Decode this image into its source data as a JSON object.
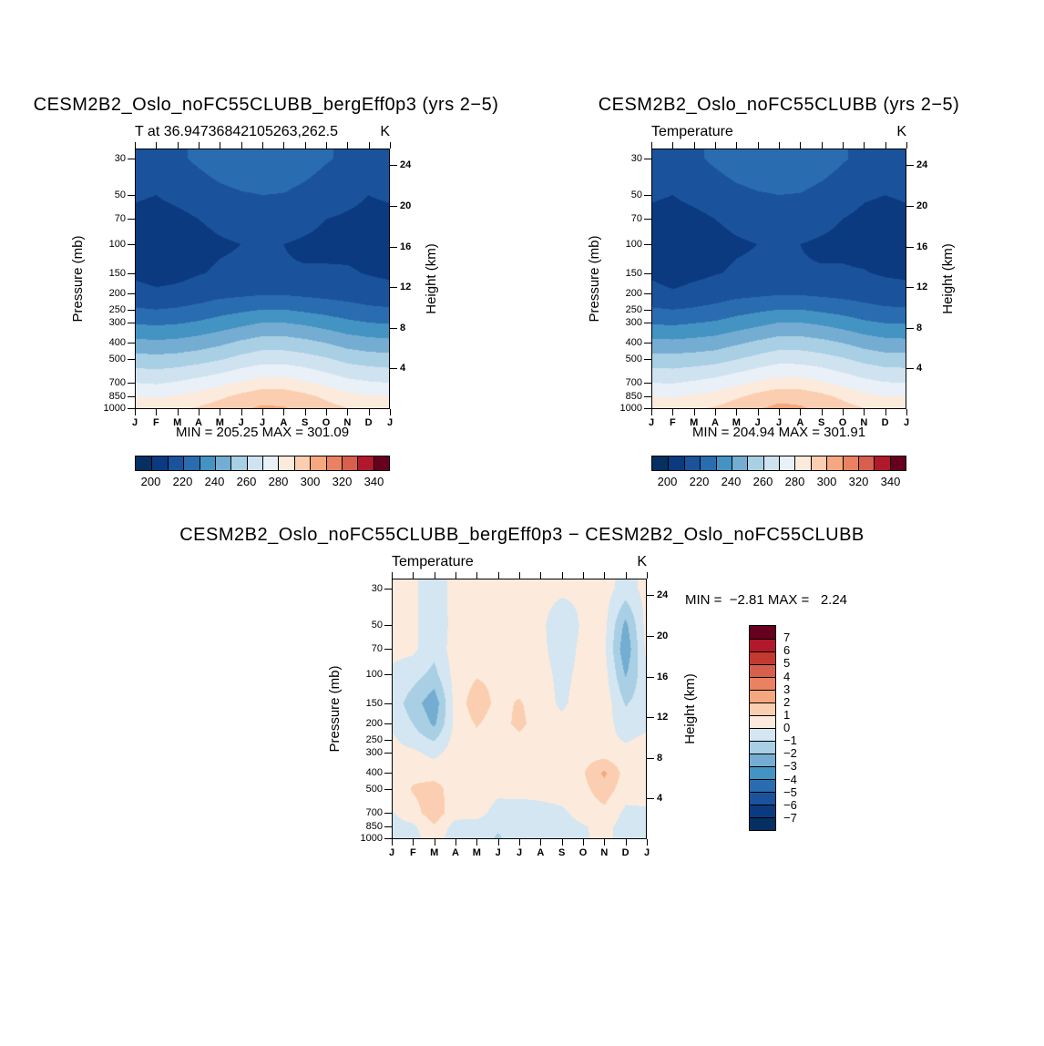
{
  "chart_data": [
    {
      "type": "heatmap",
      "title": "CESM2B2_Oslo_noFC55CLUBB_bergEff0p3 (yrs 2−5)",
      "subtitle": "T at 36.94736842105263,262.5",
      "unit": "K",
      "ylabel": "Pressure (mb)",
      "y2label": "Height (km)",
      "min_max_label": "MIN = 205.25 MAX = 301.09",
      "min": 205.25,
      "max": 301.09,
      "x_ticks": [
        "J",
        "F",
        "M",
        "A",
        "M",
        "J",
        "J",
        "A",
        "S",
        "O",
        "N",
        "D",
        "J"
      ],
      "pressure_ticks": [
        30,
        50,
        70,
        100,
        150,
        200,
        250,
        300,
        400,
        500,
        700,
        850,
        1000
      ],
      "height_ticks_km": [
        24,
        20,
        16,
        12,
        8,
        4
      ],
      "y_scale": "log-pressure",
      "y_range_mb": [
        26,
        1013
      ],
      "contour_levels": [
        200,
        210,
        220,
        230,
        240,
        250,
        260,
        270,
        280,
        290,
        300,
        310,
        320,
        330,
        340
      ],
      "palette": [
        "#053061",
        "#0b3a80",
        "#1a539c",
        "#2a6cb0",
        "#4393c3",
        "#74add1",
        "#a8cfe4",
        "#cfe2ef",
        "#e9f0f7",
        "#fcebdc",
        "#fbceb1",
        "#f5a87f",
        "#ea8160",
        "#d6604d",
        "#b2182b",
        "#67001f"
      ],
      "colorbar_labels": [
        "200",
        "220",
        "240",
        "260",
        "280",
        "300",
        "320",
        "340"
      ],
      "grid": {
        "pressures_mb": [
          30,
          50,
          70,
          100,
          150,
          200,
          250,
          300,
          400,
          500,
          700,
          850,
          1000
        ],
        "months": [
          "J",
          "F",
          "M",
          "A",
          "M",
          "J",
          "J",
          "A",
          "S",
          "O",
          "N",
          "D",
          "J"
        ],
        "values": [
          [
            217,
            216,
            218,
            222,
            226,
            228,
            229,
            228,
            225,
            221,
            218,
            216,
            217
          ],
          [
            211,
            210,
            212,
            214,
            217,
            219,
            220,
            219.5,
            217,
            214,
            212,
            210,
            211
          ],
          [
            208,
            207,
            208,
            210,
            212,
            213.5,
            214,
            213.5,
            212,
            210,
            209,
            208,
            208
          ],
          [
            206.5,
            205.3,
            206,
            207.5,
            209,
            210,
            210.5,
            210,
            209,
            208,
            207.5,
            207,
            206.5
          ],
          [
            208,
            205.8,
            207,
            209.5,
            211,
            211.5,
            211,
            210.5,
            210.5,
            211,
            211,
            209.5,
            208
          ],
          [
            214,
            212,
            213,
            215,
            217,
            218,
            219,
            219,
            218,
            217,
            216,
            214.5,
            214
          ],
          [
            221,
            220,
            221,
            223,
            226,
            228,
            230,
            230,
            228,
            226,
            224,
            222,
            221
          ],
          [
            229,
            228,
            229,
            231,
            234,
            237,
            240,
            240,
            238,
            235,
            232,
            230,
            229
          ],
          [
            243,
            242,
            243,
            245,
            248,
            252,
            255,
            255,
            253,
            250,
            246,
            244,
            243
          ],
          [
            254,
            253,
            254,
            256,
            259,
            263,
            266,
            266,
            264,
            261,
            257,
            255,
            254
          ],
          [
            270,
            269,
            271,
            274,
            277,
            281,
            284,
            284,
            281,
            277,
            273,
            271,
            270
          ],
          [
            280,
            279,
            281,
            284,
            288,
            293,
            297,
            297,
            293,
            288,
            283,
            281,
            280
          ],
          [
            287,
            286,
            288,
            291,
            295,
            299,
            301.1,
            300.5,
            298,
            294,
            290,
            287.5,
            287
          ]
        ]
      }
    },
    {
      "type": "heatmap",
      "title": "CESM2B2_Oslo_noFC55CLUBB (yrs 2−5)",
      "subtitle": "Temperature",
      "unit": "K",
      "ylabel": "Pressure (mb)",
      "y2label": "Height (km)",
      "min_max_label": "MIN = 204.94 MAX = 301.91",
      "min": 204.94,
      "max": 301.91,
      "x_ticks": [
        "J",
        "F",
        "M",
        "A",
        "M",
        "J",
        "J",
        "A",
        "S",
        "O",
        "N",
        "D",
        "J"
      ],
      "pressure_ticks": [
        30,
        50,
        70,
        100,
        150,
        200,
        250,
        300,
        400,
        500,
        700,
        850,
        1000
      ],
      "height_ticks_km": [
        24,
        20,
        16,
        12,
        8,
        4
      ],
      "y_scale": "log-pressure",
      "y_range_mb": [
        26,
        1013
      ],
      "contour_levels": [
        200,
        210,
        220,
        230,
        240,
        250,
        260,
        270,
        280,
        290,
        300,
        310,
        320,
        330,
        340
      ],
      "palette": [
        "#053061",
        "#0b3a80",
        "#1a539c",
        "#2a6cb0",
        "#4393c3",
        "#74add1",
        "#a8cfe4",
        "#cfe2ef",
        "#e9f0f7",
        "#fcebdc",
        "#fbceb1",
        "#f5a87f",
        "#ea8160",
        "#d6604d",
        "#b2182b",
        "#67001f"
      ],
      "colorbar_labels": [
        "200",
        "220",
        "240",
        "260",
        "280",
        "300",
        "320",
        "340"
      ],
      "grid": {
        "pressures_mb": [
          30,
          50,
          70,
          100,
          150,
          200,
          250,
          300,
          400,
          500,
          700,
          850,
          1000
        ],
        "months": [
          "J",
          "F",
          "M",
          "A",
          "M",
          "J",
          "J",
          "A",
          "S",
          "O",
          "N",
          "D",
          "J"
        ],
        "values": [
          [
            216,
            215,
            218,
            222,
            226,
            228,
            229,
            228,
            225,
            221,
            217,
            215,
            216
          ],
          [
            211,
            210,
            212,
            214,
            217,
            219,
            220,
            219.5,
            217,
            214,
            211,
            210,
            211
          ],
          [
            208,
            207,
            208,
            210,
            212,
            213.5,
            214,
            213.5,
            212,
            210,
            208,
            207,
            208
          ],
          [
            206.5,
            205,
            206,
            207.5,
            209,
            210,
            210.5,
            210,
            209,
            208,
            207,
            206.5,
            206.5
          ],
          [
            208,
            204.9,
            207.5,
            209.5,
            211,
            211.5,
            211,
            210.5,
            210.5,
            211,
            210.5,
            209,
            208
          ],
          [
            214,
            211.5,
            213.5,
            215,
            217,
            218,
            219,
            219,
            218,
            217,
            215.5,
            214,
            214
          ],
          [
            221,
            220,
            221,
            223,
            226,
            228,
            230,
            230,
            228,
            226,
            223.5,
            221.5,
            221
          ],
          [
            229,
            228,
            229.5,
            231,
            234,
            237,
            240,
            240,
            238,
            235,
            231.5,
            229.5,
            229
          ],
          [
            243,
            242.5,
            243.5,
            245,
            248.5,
            252,
            255,
            255,
            253,
            250,
            246,
            243.5,
            243
          ],
          [
            254,
            253.5,
            254.5,
            256,
            259.5,
            263,
            266.5,
            266,
            264,
            261,
            257,
            254.5,
            254
          ],
          [
            270,
            269.5,
            271.5,
            274,
            277.5,
            281.5,
            284.5,
            284,
            281,
            277,
            273,
            270.5,
            270
          ],
          [
            280,
            279.5,
            281.5,
            284,
            288.5,
            293.5,
            297.5,
            297,
            293,
            288,
            283,
            280.5,
            280
          ],
          [
            287,
            286.5,
            288.5,
            291,
            295.5,
            299.5,
            301.9,
            301,
            298,
            294,
            290,
            287,
            287
          ]
        ]
      }
    },
    {
      "type": "heatmap",
      "title": "CESM2B2_Oslo_noFC55CLUBB_bergEff0p3 − CESM2B2_Oslo_noFC55CLUBB",
      "subtitle": "Temperature",
      "unit": "K",
      "ylabel": "Pressure (mb)",
      "y2label": "Height (km)",
      "min_max_label": "MIN =  −2.81 MAX =   2.24",
      "min": -2.81,
      "max": 2.24,
      "x_ticks": [
        "J",
        "F",
        "M",
        "A",
        "M",
        "J",
        "J",
        "A",
        "S",
        "O",
        "N",
        "D",
        "J"
      ],
      "pressure_ticks": [
        30,
        50,
        70,
        100,
        150,
        200,
        250,
        300,
        400,
        500,
        700,
        850,
        1000
      ],
      "height_ticks_km": [
        24,
        20,
        16,
        12,
        8,
        4
      ],
      "y_scale": "log-pressure",
      "y_range_mb": [
        26,
        1013
      ],
      "contour_levels": [
        -7,
        -6,
        -5,
        -4,
        -3,
        -2,
        -1,
        0,
        1,
        2,
        3,
        4,
        5,
        6,
        7
      ],
      "palette": [
        "#053061",
        "#0b3a80",
        "#1a539c",
        "#2a6cb0",
        "#4393c3",
        "#74add1",
        "#a8cfe4",
        "#d4e6f2",
        "#fcebdc",
        "#fbceb1",
        "#f5a87f",
        "#ea8160",
        "#d6604d",
        "#c2392f",
        "#b2182b",
        "#67001f"
      ],
      "colorbar_labels": [
        "7",
        "6",
        "5",
        "4",
        "3",
        "2",
        "1",
        "0",
        "−1",
        "−2",
        "−3",
        "−4",
        "−5",
        "−6",
        "−7"
      ],
      "grid": {
        "pressures_mb": [
          30,
          50,
          70,
          100,
          150,
          200,
          250,
          300,
          400,
          500,
          700,
          850,
          1000
        ],
        "months": [
          "J",
          "F",
          "M",
          "A",
          "M",
          "J",
          "J",
          "A",
          "S",
          "O",
          "N",
          "D",
          "J"
        ],
        "values": [
          [
            0.3,
            0.2,
            -0.6,
            0.4,
            0.3,
            0.4,
            0.3,
            0.4,
            0.3,
            0.2,
            0.4,
            -0.4,
            0.3
          ],
          [
            0.4,
            0.3,
            -0.9,
            0.5,
            0.4,
            0.3,
            0.2,
            0.3,
            -0.9,
            0.2,
            0.3,
            -2.3,
            0.4
          ],
          [
            0.3,
            0.2,
            -0.7,
            0.5,
            0.6,
            0.4,
            0.3,
            0.3,
            -0.6,
            0.3,
            0.2,
            -2.8,
            0.3
          ],
          [
            -0.2,
            -0.6,
            -1.3,
            0.4,
            0.9,
            0.8,
            0.5,
            0.4,
            -0.3,
            0.3,
            0.4,
            -2.1,
            -0.2
          ],
          [
            -0.4,
            -1.5,
            -2.7,
            0.4,
            1.6,
            0.7,
            1.1,
            0.5,
            -0.2,
            0.5,
            0.6,
            -1.1,
            -0.4
          ],
          [
            -0.2,
            -1.0,
            -2.2,
            0.3,
            1.1,
            0.5,
            1.3,
            0.4,
            0.3,
            0.6,
            0.4,
            -0.5,
            -0.2
          ],
          [
            0.2,
            -0.5,
            -1.1,
            0.4,
            0.7,
            0.4,
            0.7,
            0.5,
            0.4,
            0.5,
            0.3,
            -0.1,
            0.2
          ],
          [
            0.3,
            0.2,
            -0.3,
            0.5,
            0.6,
            0.5,
            0.6,
            0.5,
            0.5,
            0.6,
            0.5,
            0.3,
            0.3
          ],
          [
            0.4,
            0.7,
            0.6,
            0.6,
            0.8,
            0.5,
            0.6,
            0.5,
            0.6,
            0.9,
            2.2,
            0.6,
            0.4
          ],
          [
            0.3,
            1.1,
            1.4,
            0.5,
            0.9,
            0.4,
            0.5,
            0.4,
            0.5,
            0.7,
            1.6,
            0.4,
            0.3
          ],
          [
            -0.1,
            0.6,
            1.6,
            0.4,
            0.6,
            -0.6,
            -0.7,
            -0.4,
            -0.2,
            0.4,
            0.7,
            -0.2,
            -0.1
          ],
          [
            -0.3,
            -0.2,
            0.9,
            -0.4,
            -0.7,
            -0.9,
            -0.5,
            -0.6,
            -0.4,
            -0.1,
            0.3,
            -0.4,
            -0.3
          ],
          [
            -0.2,
            -0.4,
            0.6,
            -0.7,
            -0.5,
            -1.1,
            -0.6,
            -0.4,
            -0.2,
            -0.1,
            0.2,
            -0.3,
            -0.2
          ]
        ]
      }
    }
  ]
}
